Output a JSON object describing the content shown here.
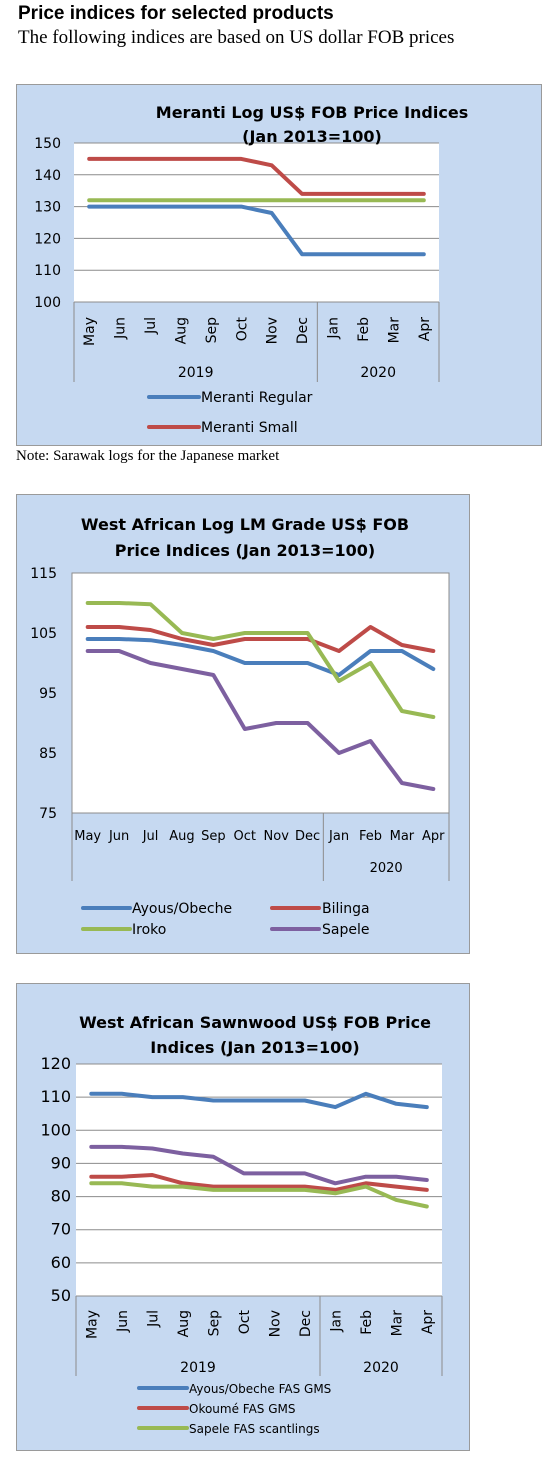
{
  "page": {
    "heading": "Price indices for selected products",
    "subheading": "The following indices are based on US dollar FOB prices",
    "note": "Note: Sarawak logs for the Japanese market"
  },
  "chart_data": [
    {
      "type": "line",
      "title": "Meranti Log US$ FOB Price Indices",
      "subtitle": "(Jan 2013=100)",
      "categories": [
        "May",
        "Jun",
        "Jul",
        "Aug",
        "Sep",
        "Oct",
        "Nov",
        "Dec",
        "Jan",
        "Feb",
        "Mar",
        "Apr"
      ],
      "year_groups": [
        {
          "label": "2019",
          "count": 8
        },
        {
          "label": "2020",
          "count": 4
        }
      ],
      "ylim": [
        100,
        150
      ],
      "yticks": [
        100,
        110,
        120,
        130,
        140,
        150
      ],
      "rotated_x_labels": true,
      "grid": true,
      "legend_position": "bottom",
      "series": [
        {
          "name": "Meranti Regular",
          "color": "#4a7ebb",
          "values": [
            130,
            130,
            130,
            130,
            130,
            130,
            128,
            115,
            115,
            115,
            115,
            115
          ]
        },
        {
          "name": "Meranti Small",
          "color": "#be4b48",
          "values": [
            145,
            145,
            145,
            145,
            145,
            145,
            143,
            134,
            134,
            134,
            134,
            134
          ]
        },
        {
          "name": "",
          "color": "#98b954",
          "values": [
            132,
            132,
            132,
            132,
            132,
            132,
            132,
            132,
            132,
            132,
            132,
            132
          ]
        }
      ]
    },
    {
      "type": "line",
      "title": "West African Log LM Grade US$ FOB",
      "subtitle": "Price Indices (Jan 2013=100)",
      "categories": [
        "May",
        "Jun",
        "Jul",
        "Aug",
        "Sep",
        "Oct",
        "Nov",
        "Dec",
        "Jan",
        "Feb",
        "Mar",
        "Apr"
      ],
      "year_groups": [
        {
          "label": "",
          "count": 8
        },
        {
          "label": "2020",
          "count": 4
        }
      ],
      "ylim": [
        75,
        115
      ],
      "yticks": [
        75,
        85,
        95,
        105,
        115
      ],
      "rotated_x_labels": false,
      "grid": false,
      "legend_position": "bottom",
      "series": [
        {
          "name": "Ayous/Obeche",
          "color": "#4a7ebb",
          "values": [
            104,
            104,
            103.8,
            103,
            102,
            100,
            100,
            100,
            98,
            102,
            102,
            99
          ]
        },
        {
          "name": "Bilinga",
          "color": "#be4b48",
          "values": [
            106,
            106,
            105.5,
            104,
            103,
            104,
            104,
            104,
            102,
            106,
            103,
            102
          ]
        },
        {
          "name": "Iroko",
          "color": "#98b954",
          "values": [
            110,
            110,
            109.8,
            105,
            104,
            105,
            105,
            105,
            97,
            100,
            92,
            91
          ]
        },
        {
          "name": "Sapele",
          "color": "#7d60a0",
          "values": [
            102,
            102,
            100,
            99,
            98,
            89,
            90,
            90,
            85,
            87,
            80,
            79
          ]
        }
      ]
    },
    {
      "type": "line",
      "title": "West African Sawnwood US$ FOB Price",
      "subtitle": "Indices (Jan 2013=100)",
      "categories": [
        "May",
        "Jun",
        "Jul",
        "Aug",
        "Sep",
        "Oct",
        "Nov",
        "Dec",
        "Jan",
        "Feb",
        "Mar",
        "Apr"
      ],
      "year_groups": [
        {
          "label": "2019",
          "count": 8
        },
        {
          "label": "2020",
          "count": 4
        }
      ],
      "ylim": [
        50,
        120
      ],
      "yticks": [
        50,
        60,
        70,
        80,
        90,
        100,
        110,
        120
      ],
      "rotated_x_labels": true,
      "grid": true,
      "legend_position": "bottom",
      "series": [
        {
          "name": "Ayous/Obeche  FAS GMS",
          "color": "#4a7ebb",
          "values": [
            111,
            111,
            110,
            110,
            109,
            109,
            109,
            109,
            107,
            111,
            108,
            107
          ]
        },
        {
          "name": "Okoumé  FAS GMS",
          "color": "#be4b48",
          "values": [
            86,
            86,
            86.5,
            84,
            83,
            83,
            83,
            83,
            82,
            84,
            83,
            82
          ]
        },
        {
          "name": "Sapele FAS scantlings",
          "color": "#98b954",
          "values": [
            84,
            84,
            83,
            83,
            82,
            82,
            82,
            82,
            81,
            83,
            79,
            77
          ]
        },
        {
          "name": "",
          "color": "#7d60a0",
          "values": [
            95,
            95,
            94.5,
            93,
            92,
            87,
            87,
            87,
            84,
            86,
            86,
            85
          ]
        }
      ]
    }
  ]
}
